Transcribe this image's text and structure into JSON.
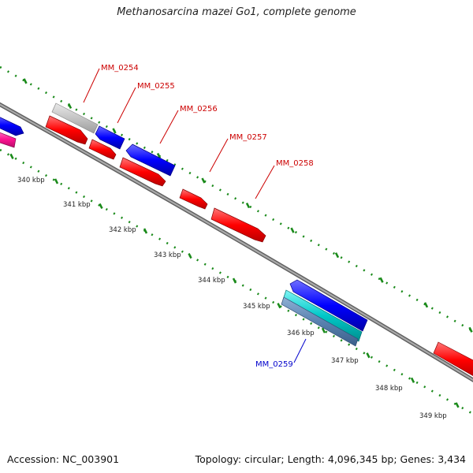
{
  "title": "Methanosarcina mazei Go1, complete genome",
  "footer": {
    "accession": "Accession: NC_003901",
    "summary": "Topology: circular; Length: 4,096,345 bp; Genes: 3,434"
  },
  "colors": {
    "forward_gene": "#ff0000",
    "reverse_gene": "#0000ff",
    "hypothetical_gene": "#c0c0c0",
    "rna_gene": "#00c8c8",
    "other_gene": "#ff1493",
    "backbone": "#8a8a8a",
    "dotted_track": "#1a8a1a",
    "forward_label": "#cc0000",
    "reverse_label": "#0000cc"
  },
  "scale": {
    "unit": "kbp",
    "ticks": [
      {
        "label": "340 kbp"
      },
      {
        "label": "341 kbp"
      },
      {
        "label": "342 kbp"
      },
      {
        "label": "343 kbp"
      },
      {
        "label": "344 kbp"
      },
      {
        "label": "345 kbp"
      },
      {
        "label": "346 kbp"
      },
      {
        "label": "347 kbp"
      },
      {
        "label": "348 kbp"
      },
      {
        "label": "349 kbp"
      }
    ]
  },
  "genes": [
    {
      "name": "MM_0254",
      "strand": "-",
      "type": "hypothetical",
      "labeled": true
    },
    {
      "name": "MM_0255",
      "strand": "-",
      "type": "cds",
      "labeled": true
    },
    {
      "name": "MM_0256",
      "strand": "-",
      "type": "cds",
      "labeled": true
    },
    {
      "name": "MM_0257",
      "strand": "+",
      "type": "cds",
      "labeled": true
    },
    {
      "name": "MM_0258",
      "strand": "+",
      "type": "cds",
      "labeled": true
    },
    {
      "name": "MM_0259",
      "strand": "-",
      "type": "cds",
      "labeled": true
    }
  ]
}
